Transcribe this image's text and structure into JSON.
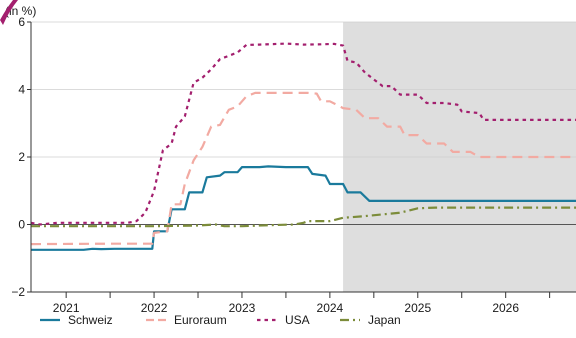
{
  "chart_data": {
    "type": "line",
    "unit_label": "(in %)",
    "ylim": [
      -2,
      6
    ],
    "y_ticks": [
      -2,
      0,
      2,
      4,
      6
    ],
    "y_tick_labels": [
      "−2",
      "0",
      "2",
      "4",
      "6"
    ],
    "xlim": [
      2020.6,
      2026.8
    ],
    "x_tick_positions": [
      2020.5,
      2021.0,
      2021.5,
      2022.0,
      2022.5,
      2023.0,
      2023.5,
      2024.0,
      2024.5,
      2025.0,
      2025.5,
      2026.0,
      2026.5
    ],
    "x_tick_labels": [
      "2021",
      "2022",
      "2023",
      "2024",
      "2025",
      "2026"
    ],
    "x_label_positions": [
      2021.0,
      2022.0,
      2023.0,
      2024.0,
      2025.0,
      2026.0
    ],
    "forecast_region": [
      2024.15,
      2026.8
    ],
    "forecast_color": "#dedede",
    "grid": true,
    "legend_position": "bottom",
    "series": [
      {
        "name": "Schweiz",
        "color": "#1a7a9c",
        "dash": "solid",
        "points": [
          [
            2020.6,
            -0.75
          ],
          [
            2021.2,
            -0.75
          ],
          [
            2021.3,
            -0.72
          ],
          [
            2021.4,
            -0.73
          ],
          [
            2021.55,
            -0.72
          ],
          [
            2021.7,
            -0.72
          ],
          [
            2021.9,
            -0.72
          ],
          [
            2021.98,
            -0.72
          ],
          [
            2022.0,
            -0.2
          ],
          [
            2022.15,
            -0.2
          ],
          [
            2022.2,
            0.45
          ],
          [
            2022.35,
            0.45
          ],
          [
            2022.4,
            0.95
          ],
          [
            2022.55,
            0.95
          ],
          [
            2022.6,
            1.4
          ],
          [
            2022.75,
            1.45
          ],
          [
            2022.8,
            1.55
          ],
          [
            2022.95,
            1.55
          ],
          [
            2023.0,
            1.7
          ],
          [
            2023.2,
            1.7
          ],
          [
            2023.3,
            1.72
          ],
          [
            2023.5,
            1.7
          ],
          [
            2023.6,
            1.7
          ],
          [
            2023.75,
            1.7
          ],
          [
            2023.8,
            1.5
          ],
          [
            2023.95,
            1.45
          ],
          [
            2024.0,
            1.2
          ],
          [
            2024.15,
            1.2
          ],
          [
            2024.2,
            0.95
          ],
          [
            2024.35,
            0.95
          ],
          [
            2024.45,
            0.7
          ],
          [
            2026.8,
            0.7
          ]
        ]
      },
      {
        "name": "Euroraum",
        "color": "#f2aaa2",
        "dash": "long",
        "points": [
          [
            2020.6,
            -0.58
          ],
          [
            2021.5,
            -0.57
          ],
          [
            2021.98,
            -0.57
          ],
          [
            2022.0,
            -0.25
          ],
          [
            2022.15,
            -0.2
          ],
          [
            2022.2,
            0.6
          ],
          [
            2022.3,
            0.6
          ],
          [
            2022.35,
            1.2
          ],
          [
            2022.45,
            1.9
          ],
          [
            2022.55,
            2.3
          ],
          [
            2022.65,
            2.9
          ],
          [
            2022.75,
            2.95
          ],
          [
            2022.85,
            3.4
          ],
          [
            2022.95,
            3.5
          ],
          [
            2023.05,
            3.8
          ],
          [
            2023.15,
            3.9
          ],
          [
            2023.3,
            3.9
          ],
          [
            2023.5,
            3.9
          ],
          [
            2023.75,
            3.9
          ],
          [
            2023.85,
            3.88
          ],
          [
            2023.9,
            3.65
          ],
          [
            2024.0,
            3.65
          ],
          [
            2024.15,
            3.45
          ],
          [
            2024.3,
            3.4
          ],
          [
            2024.4,
            3.15
          ],
          [
            2024.55,
            3.15
          ],
          [
            2024.65,
            2.9
          ],
          [
            2024.8,
            2.9
          ],
          [
            2024.85,
            2.65
          ],
          [
            2025.0,
            2.65
          ],
          [
            2025.1,
            2.4
          ],
          [
            2025.3,
            2.4
          ],
          [
            2025.4,
            2.15
          ],
          [
            2025.6,
            2.15
          ],
          [
            2025.7,
            2.0
          ],
          [
            2026.8,
            2.0
          ]
        ]
      },
      {
        "name": "USA",
        "color": "#a31f6e",
        "dash": "dotted",
        "points": [
          [
            2020.6,
            0.05
          ],
          [
            2020.7,
            0.0
          ],
          [
            2020.9,
            0.05
          ],
          [
            2021.3,
            0.05
          ],
          [
            2021.7,
            0.05
          ],
          [
            2021.8,
            0.1
          ],
          [
            2021.9,
            0.35
          ],
          [
            2022.0,
            1.0
          ],
          [
            2022.1,
            2.2
          ],
          [
            2022.2,
            2.4
          ],
          [
            2022.25,
            2.9
          ],
          [
            2022.35,
            3.2
          ],
          [
            2022.4,
            3.7
          ],
          [
            2022.45,
            4.2
          ],
          [
            2022.55,
            4.35
          ],
          [
            2022.65,
            4.6
          ],
          [
            2022.75,
            4.9
          ],
          [
            2022.85,
            5.0
          ],
          [
            2022.95,
            5.1
          ],
          [
            2023.05,
            5.32
          ],
          [
            2023.2,
            5.33
          ],
          [
            2023.5,
            5.36
          ],
          [
            2023.7,
            5.33
          ],
          [
            2023.9,
            5.34
          ],
          [
            2024.05,
            5.35
          ],
          [
            2024.15,
            5.3
          ],
          [
            2024.2,
            4.85
          ],
          [
            2024.3,
            4.8
          ],
          [
            2024.4,
            4.5
          ],
          [
            2024.5,
            4.3
          ],
          [
            2024.6,
            4.1
          ],
          [
            2024.7,
            4.1
          ],
          [
            2024.8,
            3.85
          ],
          [
            2025.0,
            3.85
          ],
          [
            2025.1,
            3.6
          ],
          [
            2025.3,
            3.6
          ],
          [
            2025.45,
            3.55
          ],
          [
            2025.5,
            3.35
          ],
          [
            2025.7,
            3.3
          ],
          [
            2025.75,
            3.1
          ],
          [
            2026.8,
            3.1
          ]
        ]
      },
      {
        "name": "Japan",
        "color": "#7c8c3a",
        "dash": "dashdot",
        "points": [
          [
            2020.6,
            -0.05
          ],
          [
            2021.0,
            -0.05
          ],
          [
            2021.5,
            -0.05
          ],
          [
            2022.0,
            -0.05
          ],
          [
            2022.5,
            -0.03
          ],
          [
            2022.7,
            0.0
          ],
          [
            2022.8,
            -0.05
          ],
          [
            2023.0,
            -0.05
          ],
          [
            2023.3,
            -0.02
          ],
          [
            2023.6,
            0.0
          ],
          [
            2023.7,
            0.05
          ],
          [
            2023.75,
            0.1
          ],
          [
            2024.0,
            0.1
          ],
          [
            2024.15,
            0.2
          ],
          [
            2024.4,
            0.25
          ],
          [
            2024.6,
            0.3
          ],
          [
            2024.8,
            0.35
          ],
          [
            2025.0,
            0.48
          ],
          [
            2025.2,
            0.5
          ],
          [
            2025.5,
            0.5
          ],
          [
            2026.0,
            0.5
          ],
          [
            2026.8,
            0.5
          ]
        ]
      }
    ]
  }
}
